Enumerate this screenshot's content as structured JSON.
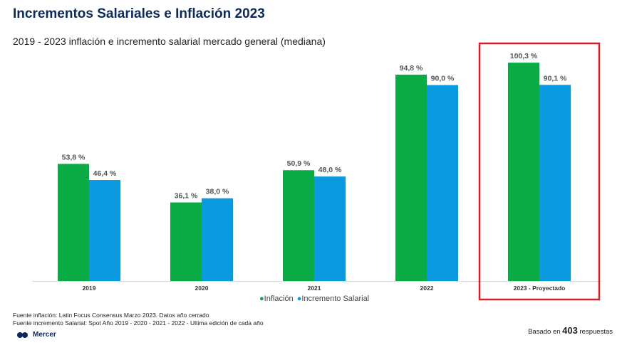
{
  "title": "Incrementos Salariales e Inflación 2023",
  "subtitle": "2019 - 2023 inflación e incremento salarial mercado general (mediana)",
  "chart_data": {
    "type": "bar",
    "categories": [
      "2019",
      "2020",
      "2021",
      "2022",
      "2023 - Proyectado"
    ],
    "series": [
      {
        "name": "Inflación",
        "values": [
          53.8,
          36.1,
          50.9,
          94.8,
          100.3
        ],
        "labels": [
          "53,8 %",
          "36,1 %",
          "50,9 %",
          "94,8 %",
          "100,3 %"
        ],
        "color": "#0aab45"
      },
      {
        "name": "Incremento Salarial",
        "values": [
          46.4,
          38.0,
          48.0,
          90.0,
          90.1
        ],
        "labels": [
          "46,4 %",
          "38,0 %",
          "48,0 %",
          "90,0 %",
          "90,1 %"
        ],
        "color": "#0a9ae0"
      }
    ],
    "ylim": [
      0,
      105
    ],
    "grid": false,
    "legend": "bottom-center",
    "highlight": {
      "category": "2023 - Proyectado",
      "color": "#d0202e"
    }
  },
  "sources": {
    "inflation": "Fuente inflación: Latin Focus Consensus Marzo 2023. Datos año cerrado",
    "salary": "Fuente incremento Salarial: Spot Año 2019 - 2020 - 2021 - 2022 - Ultima edición de cada año"
  },
  "brand": "Mercer",
  "respondents": {
    "prefix": "Basado en",
    "count": "403",
    "suffix": "respuestas"
  }
}
